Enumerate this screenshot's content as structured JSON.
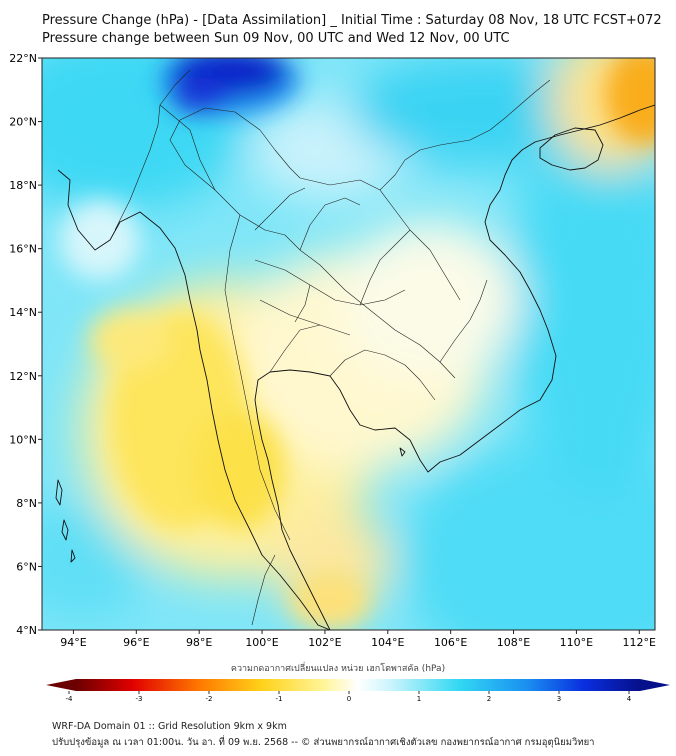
{
  "header": {
    "title": "Pressure Change (hPa) - [Data Assimilation] _ Initial Time : Saturday 08 Nov, 18 UTC FCST+072",
    "subtitle": "Pressure change between Sun 09 Nov, 00 UTC and Wed 12 Nov, 00 UTC"
  },
  "map": {
    "lon_range": [
      93,
      112.5
    ],
    "lat_range": [
      4,
      22
    ],
    "lat_ticks": [
      {
        "value": 22,
        "label": "22°N"
      },
      {
        "value": 20,
        "label": "20°N"
      },
      {
        "value": 18,
        "label": "18°N"
      },
      {
        "value": 16,
        "label": "16°N"
      },
      {
        "value": 14,
        "label": "14°N"
      },
      {
        "value": 12,
        "label": "12°N"
      },
      {
        "value": 10,
        "label": "10°N"
      },
      {
        "value": 8,
        "label": "8°N"
      },
      {
        "value": 6,
        "label": "6°N"
      },
      {
        "value": 4,
        "label": "4°N"
      }
    ],
    "lon_ticks": [
      {
        "value": 94,
        "label": "94°E"
      },
      {
        "value": 96,
        "label": "96°E"
      },
      {
        "value": 98,
        "label": "98°E"
      },
      {
        "value": 100,
        "label": "100°E"
      },
      {
        "value": 102,
        "label": "102°E"
      },
      {
        "value": 104,
        "label": "104°E"
      },
      {
        "value": 106,
        "label": "106°E"
      },
      {
        "value": 108,
        "label": "108°E"
      },
      {
        "value": 110,
        "label": "110°E"
      },
      {
        "value": 112,
        "label": "112°E"
      }
    ],
    "colors": {
      "deep_blue": "#0a1fc8",
      "cyan": "#2fd6f2",
      "light_cyan": "#b6f0fb",
      "pale_yellow": "#fff8c4",
      "yellow": "#fde34a",
      "orange": "#f8aa0e",
      "coast": "#111111"
    }
  },
  "colorbar": {
    "ticks": [
      "-4",
      "-3",
      "-2",
      "-1",
      "0",
      "1",
      "2",
      "3",
      "4"
    ],
    "label": "ความกดอากาศเปลี่ยนแปลง หน่วย เฮกโตพาสคัล (hPa)"
  },
  "footer": {
    "line1": "WRF-DA Domain 01 :: Grid Resolution 9km x 9km",
    "line2": "ปรับปรุงข้อมูล ณ เวลา 01:00น. วัน อา. ที่ 09 พ.ย. 2568 -- © ส่วนพยากรณ์อากาศเชิงตัวเลข กองพยากรณ์อากาศ กรมอุตุนิยมวิทยา"
  }
}
